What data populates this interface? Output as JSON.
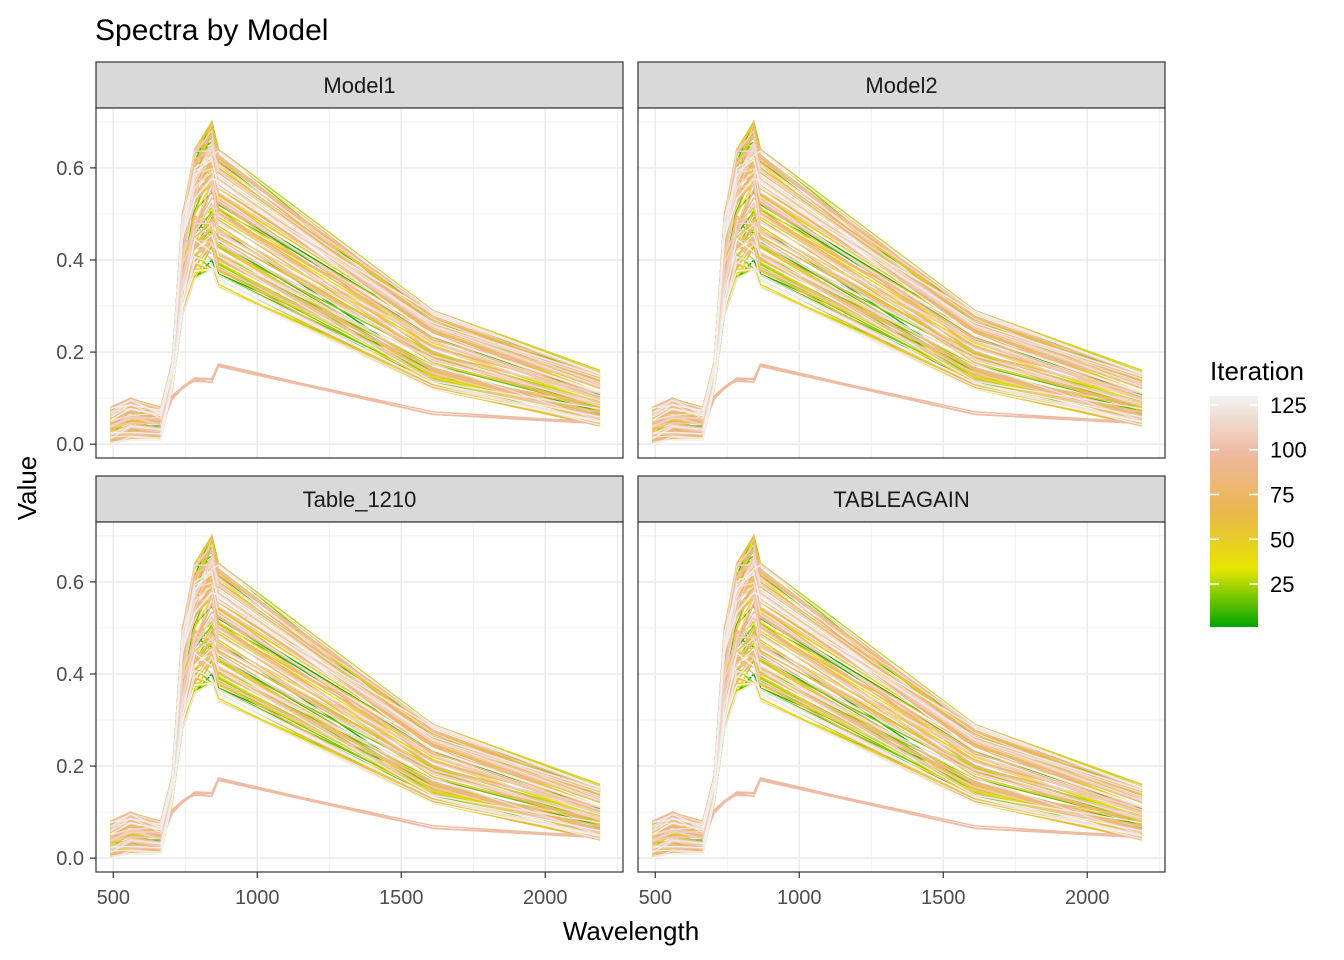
{
  "chart_data": {
    "type": "line",
    "title": "Spectra by Model",
    "xlabel": "Wavelength",
    "ylabel": "Value",
    "xlim": [
      440,
      2270
    ],
    "ylim": [
      -0.03,
      0.73
    ],
    "xticks": [
      500,
      1000,
      1500,
      2000
    ],
    "xtick_labels": [
      "500",
      "1000",
      "1500",
      "2000"
    ],
    "yticks": [
      0.0,
      0.2,
      0.4,
      0.6
    ],
    "ytick_labels": [
      "0.0",
      "0.2",
      "0.4",
      "0.6"
    ],
    "grid": true,
    "facets": [
      "Model1",
      "Model2",
      "Table_1210",
      "TABLEAGAIN"
    ],
    "wavelengths": [
      490,
      560,
      665,
      705,
      740,
      783,
      842,
      865,
      1610,
      2190
    ],
    "series_stats": {
      "iterations": [
        1,
        130
      ],
      "min_spectrum": [
        0.0,
        0.01,
        0.01,
        0.12,
        0.28,
        0.36,
        0.38,
        0.34,
        0.12,
        0.04
      ],
      "max_spectrum": [
        0.08,
        0.1,
        0.08,
        0.18,
        0.5,
        0.64,
        0.7,
        0.64,
        0.29,
        0.16
      ],
      "low_group_spectrum": [
        0.02,
        0.04,
        0.03,
        0.1,
        0.12,
        0.14,
        0.14,
        0.17,
        0.07,
        0.045
      ]
    },
    "legend": {
      "title": "Iteration",
      "placement": "right",
      "type": "colorbar",
      "ticks": [
        25,
        50,
        75,
        100,
        125
      ],
      "tick_labels": [
        "25",
        "50",
        "75",
        "100",
        "125"
      ],
      "range": [
        1,
        130
      ],
      "colors": [
        "#00A600",
        "#E6E600",
        "#EAB64E",
        "#EEB99F",
        "#F2F2F2"
      ]
    }
  }
}
